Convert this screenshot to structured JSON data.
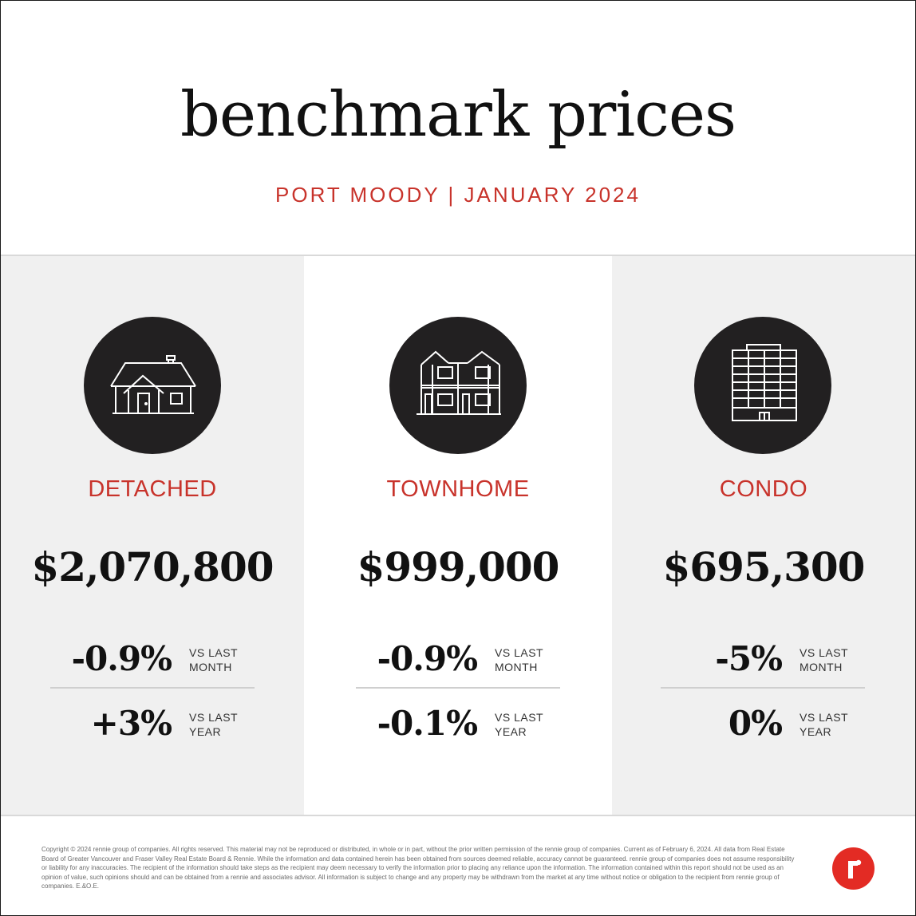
{
  "header": {
    "title": "benchmark prices",
    "subtitle": "PORT MOODY | JANUARY 2024"
  },
  "colors": {
    "accent": "#c8332b",
    "logo_red": "#e32b24",
    "icon_circle": "#222021",
    "panel_gray": "#f0f0f0"
  },
  "columns": [
    {
      "icon": "house-icon",
      "type": "DETACHED",
      "price": "$2,070,800",
      "month_change": "-0.9%",
      "month_label_1": "VS LAST",
      "month_label_2": "MONTH",
      "year_change": "+3%",
      "year_label_1": "VS LAST",
      "year_label_2": "YEAR"
    },
    {
      "icon": "townhome-icon",
      "type": "TOWNHOME",
      "price": "$999,000",
      "month_change": "-0.9%",
      "month_label_1": "VS LAST",
      "month_label_2": "MONTH",
      "year_change": "-0.1%",
      "year_label_1": "VS LAST",
      "year_label_2": "YEAR"
    },
    {
      "icon": "condo-building-icon",
      "type": "CONDO",
      "price": "$695,300",
      "month_change": "-5%",
      "month_label_1": "VS LAST",
      "month_label_2": "MONTH",
      "year_change": "0%",
      "year_label_1": "VS LAST",
      "year_label_2": "YEAR"
    }
  ],
  "footer": {
    "disclaimer": "Copyright © 2024 rennie group of companies. All rights reserved. This material may not be reproduced or distributed, in whole or in part, without the prior written permission of the rennie group of companies. Current as of February 6, 2024. All data from Real Estate Board of Greater Vancouver and Fraser Valley Real Estate Board & Rennie. While the information and data contained herein has been obtained from sources deemed reliable, accuracy cannot be guaranteed. rennie group of companies does not assume responsibility or liability for any inaccuracies. The recipient of the information should take steps as the recipient may deem necessary to verify the information prior to placing any reliance upon the information. The information contained within this report should not be used as an opinion of value, such opinions should and can be obtained from a rennie and associates advisor. All information is subject to change and any property may be withdrawn from the market at any time without notice or obligation to the recipient from rennie group of companies. E.&O.E.",
    "logo": "rennie-logo-icon"
  }
}
